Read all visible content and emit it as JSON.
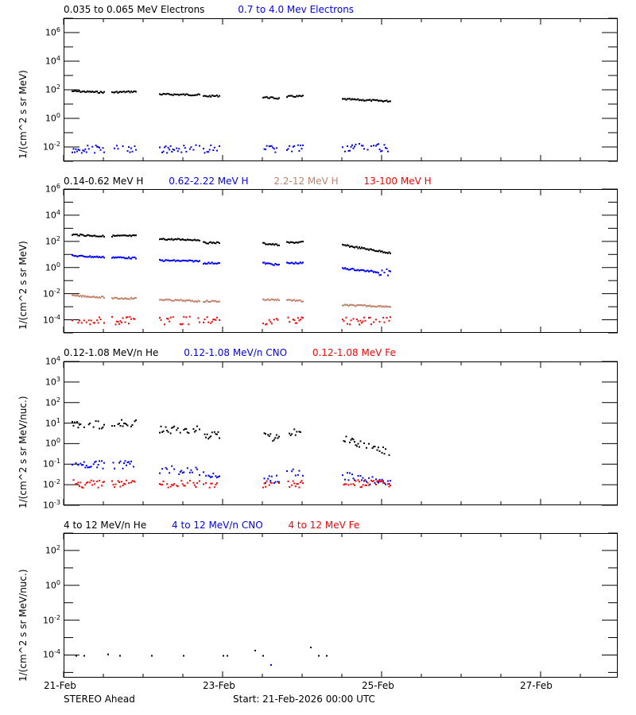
{
  "chart_data": [
    {
      "type": "scatter",
      "title": "",
      "legend": [
        "0.035 to 0.065 MeV Electrons",
        "0.7 to 4.0 Mev Electrons"
      ],
      "legend_colors": [
        "#000000",
        "#0000ff"
      ],
      "ylabel": "1/(cm^2 s sr MeV)",
      "yscale": "log",
      "ylim": [
        0.001,
        10000000
      ],
      "yticks": [
        "10^6",
        "10^4",
        "10^2",
        "10^0",
        "10^-2"
      ],
      "series": [
        {
          "name": "0.035 to 0.065 MeV Electrons",
          "color": "#000000",
          "segments": [
            [
              0.1,
              0.5,
              90,
              75
            ],
            [
              0.6,
              0.9,
              75,
              85
            ],
            [
              1.2,
              1.7,
              55,
              50
            ],
            [
              1.75,
              1.95,
              40,
              42
            ],
            [
              2.5,
              2.7,
              35,
              28
            ],
            [
              2.8,
              3.0,
              38,
              40
            ],
            [
              3.5,
              4.1,
              25,
              18
            ]
          ]
        },
        {
          "name": "0.7 to 4.0 Mev Electrons",
          "color": "#0000ff",
          "segments": [
            [
              0.1,
              0.5,
              0.008,
              0.008
            ],
            [
              0.6,
              0.9,
              0.008,
              0.008
            ],
            [
              1.2,
              1.7,
              0.008,
              0.008
            ],
            [
              1.75,
              1.95,
              0.008,
              0.008
            ],
            [
              2.5,
              2.7,
              0.008,
              0.008
            ],
            [
              2.8,
              3.0,
              0.008,
              0.008
            ],
            [
              3.5,
              4.1,
              0.01,
              0.01
            ]
          ]
        }
      ]
    },
    {
      "type": "scatter",
      "legend": [
        "0.14-0.62 MeV H",
        "0.62-2.22 MeV H",
        "2.2-12 MeV H",
        "13-100 MeV H"
      ],
      "legend_colors": [
        "#000000",
        "#0000ff",
        "#c0826a",
        "#ff0000"
      ],
      "ylabel": "1/(cm^2 s sr MeV)",
      "yscale": "log",
      "ylim": [
        1e-05,
        1000000
      ],
      "yticks": [
        "10^6",
        "10^4",
        "10^2",
        "10^0",
        "10^-2",
        "10^-4"
      ],
      "series": [
        {
          "name": "0.14-0.62 MeV H",
          "color": "#000000",
          "segments": [
            [
              0.1,
              0.5,
              380,
              280
            ],
            [
              0.6,
              0.9,
              300,
              300
            ],
            [
              1.2,
              1.7,
              170,
              150
            ],
            [
              1.75,
              1.95,
              90,
              90
            ],
            [
              2.5,
              2.7,
              80,
              60
            ],
            [
              2.8,
              3.0,
              90,
              100
            ],
            [
              3.5,
              4.1,
              60,
              15
            ]
          ]
        },
        {
          "name": "0.62-2.22 MeV H",
          "color": "#0000ff",
          "segments": [
            [
              0.1,
              0.5,
              9,
              7
            ],
            [
              0.6,
              0.9,
              7,
              6
            ],
            [
              1.2,
              1.7,
              4,
              3.5
            ],
            [
              1.75,
              1.95,
              2.5,
              2.5
            ],
            [
              2.5,
              2.7,
              2.5,
              1.8
            ],
            [
              2.8,
              3.0,
              2.5,
              2.5
            ],
            [
              3.5,
              4.1,
              1.0,
              0.4
            ]
          ]
        },
        {
          "name": "2.2-12 MeV H",
          "color": "#c0826a",
          "segments": [
            [
              0.1,
              0.5,
              0.008,
              0.006
            ],
            [
              0.6,
              0.9,
              0.005,
              0.005
            ],
            [
              1.2,
              1.7,
              0.004,
              0.003
            ],
            [
              1.75,
              1.95,
              0.003,
              0.003
            ],
            [
              2.5,
              2.7,
              0.004,
              0.004
            ],
            [
              2.8,
              3.0,
              0.004,
              0.003
            ],
            [
              3.5,
              4.1,
              0.0015,
              0.0012
            ]
          ]
        },
        {
          "name": "13-100 MeV H",
          "color": "#ff0000",
          "segments": [
            [
              0.1,
              0.5,
              0.0001,
              0.0001
            ],
            [
              0.6,
              0.9,
              0.0001,
              0.0001
            ],
            [
              1.2,
              1.7,
              0.0001,
              0.0001
            ],
            [
              1.75,
              1.95,
              0.0001,
              0.0001
            ],
            [
              2.5,
              2.7,
              0.0001,
              0.0001
            ],
            [
              2.8,
              3.0,
              0.0001,
              0.0001
            ],
            [
              3.5,
              4.1,
              0.0001,
              0.0001
            ]
          ]
        }
      ]
    },
    {
      "type": "scatter",
      "legend": [
        "0.12-1.08 MeV/n He",
        "0.12-1.08 MeV/n CNO",
        "0.12-1.08 MeV Fe"
      ],
      "legend_colors": [
        "#000000",
        "#0000ff",
        "#ff0000"
      ],
      "ylabel": "1/(cm^2 s sr MeV/nuc.)",
      "yscale": "log",
      "ylim": [
        0.001,
        10000
      ],
      "yticks": [
        "10^4",
        "10^3",
        "10^2",
        "10^1",
        "10^0",
        "10^-1",
        "10^-2",
        "10^-3"
      ],
      "series": [
        {
          "name": "0.12-1.08 MeV/n He",
          "color": "#000000",
          "segments": [
            [
              0.1,
              0.5,
              9,
              9
            ],
            [
              0.6,
              0.9,
              12,
              10
            ],
            [
              1.2,
              1.7,
              5,
              5
            ],
            [
              1.75,
              1.95,
              2.5,
              3
            ],
            [
              2.5,
              2.7,
              2.5,
              2
            ],
            [
              2.8,
              3.0,
              4,
              3
            ],
            [
              3.5,
              4.1,
              2,
              0.4
            ]
          ]
        },
        {
          "name": "0.12-1.08 MeV/n CNO",
          "color": "#0000ff",
          "segments": [
            [
              0.1,
              0.5,
              0.1,
              0.1
            ],
            [
              0.6,
              0.9,
              0.1,
              0.1
            ],
            [
              1.2,
              1.7,
              0.06,
              0.05
            ],
            [
              1.75,
              1.95,
              0.04,
              0.03
            ],
            [
              2.5,
              2.7,
              0.02,
              0.02
            ],
            [
              2.8,
              3.0,
              0.05,
              0.04
            ],
            [
              3.5,
              4.1,
              0.03,
              0.012
            ]
          ]
        },
        {
          "name": "0.12-1.08 MeV Fe",
          "color": "#ff0000",
          "segments": [
            [
              0.1,
              0.5,
              0.012,
              0.012
            ],
            [
              0.6,
              0.9,
              0.012,
              0.012
            ],
            [
              1.2,
              1.7,
              0.012,
              0.012
            ],
            [
              1.75,
              1.95,
              0.012,
              0.012
            ],
            [
              2.5,
              2.7,
              0.012,
              0.012
            ],
            [
              2.8,
              3.0,
              0.012,
              0.012
            ],
            [
              3.5,
              4.1,
              0.012,
              0.012
            ]
          ]
        }
      ]
    },
    {
      "type": "scatter",
      "legend": [
        "4 to 12 MeV/n He",
        "4 to 12 MeV/n CNO",
        "4 to 12 MeV Fe"
      ],
      "legend_colors": [
        "#000000",
        "#0000ff",
        "#ff0000"
      ],
      "ylabel": "1/(cm^2 s sr MeV/nuc.)",
      "yscale": "log",
      "ylim": [
        5e-06,
        1000
      ],
      "yticks": [
        "10^2",
        "10^0",
        "10^-2",
        "10^-4"
      ],
      "series": [
        {
          "name": "4 to 12 MeV/n He",
          "color": "#000000",
          "points": [
            [
              0.15,
              0.0001
            ],
            [
              0.25,
              0.0001
            ],
            [
              0.55,
              0.00012
            ],
            [
              0.7,
              0.0001
            ],
            [
              1.1,
              0.0001
            ],
            [
              1.5,
              0.0001
            ],
            [
              2.0,
              0.0001
            ],
            [
              2.05,
              0.0001
            ],
            [
              2.4,
              0.0002
            ],
            [
              2.5,
              0.0001
            ],
            [
              3.1,
              0.0003
            ],
            [
              3.2,
              0.0001
            ],
            [
              3.3,
              0.0001
            ]
          ]
        },
        {
          "name": "4 to 12 MeV/n CNO",
          "color": "#0000ff",
          "points": [
            [
              2.6,
              3e-05
            ]
          ]
        },
        {
          "name": "4 to 12 MeV Fe",
          "color": "#ff0000",
          "points": []
        }
      ]
    }
  ],
  "xaxis": {
    "ticks": [
      "21-Feb",
      "23-Feb",
      "25-Feb",
      "27-Feb"
    ],
    "range_days": [
      0,
      7
    ]
  },
  "footer": {
    "spacecraft": "STEREO Ahead",
    "start": "Start: 21-Feb-2026 00:00 UTC"
  }
}
